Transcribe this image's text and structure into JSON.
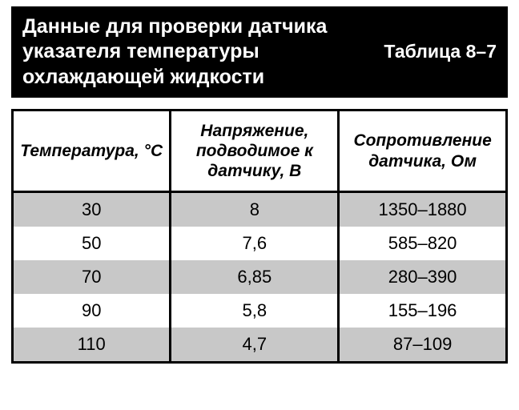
{
  "header": {
    "title": "Данные для проверки датчика указателя температуры охлаждающей жидкости",
    "table_ref": "Таблица 8–7"
  },
  "table": {
    "columns": [
      "Температура, °C",
      "Напряжение, подводимое к датчику, В",
      "Сопротив­ление датчи­ка, Ом"
    ],
    "rows": [
      [
        "30",
        "8",
        "1350–1880"
      ],
      [
        "50",
        "7,6",
        "585–820"
      ],
      [
        "70",
        "6,85",
        "280–390"
      ],
      [
        "90",
        "5,8",
        "155–196"
      ],
      [
        "110",
        "4,7",
        "87–109"
      ]
    ],
    "row_colors": {
      "odd": "#c8c8c8",
      "even": "#ffffff"
    },
    "border_color": "#000000",
    "header_font_style": "italic bold",
    "header_fontsize": 21,
    "body_fontsize": 22
  },
  "colors": {
    "title_bg": "#000000",
    "title_fg": "#ffffff",
    "page_bg": "#ffffff"
  }
}
